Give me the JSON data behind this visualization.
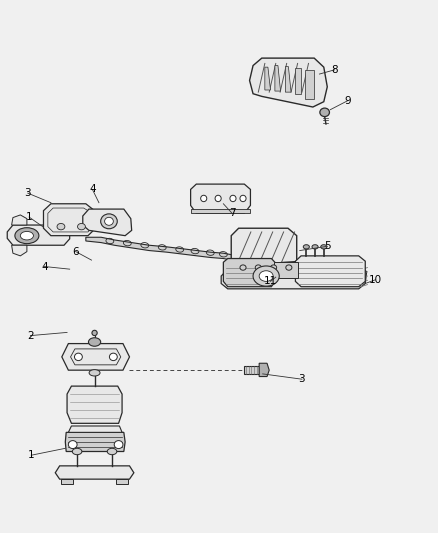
{
  "bg_color": "#f0f0f0",
  "fig_width": 4.38,
  "fig_height": 5.33,
  "dpi": 100,
  "line_color": "#2a2a2a",
  "fill_light": "#e8e8e8",
  "fill_mid": "#d0d0d0",
  "fill_dark": "#b0b0b0",
  "labels": {
    "1a": [
      0.07,
      0.585,
      0.13,
      0.565
    ],
    "1b": [
      0.09,
      0.138,
      0.155,
      0.155
    ],
    "2": [
      0.07,
      0.365,
      0.155,
      0.375
    ],
    "3a": [
      0.065,
      0.638,
      0.105,
      0.625
    ],
    "3b": [
      0.685,
      0.29,
      0.575,
      0.303
    ],
    "4a": [
      0.215,
      0.635,
      0.255,
      0.62
    ],
    "4b": [
      0.105,
      0.485,
      0.155,
      0.495
    ],
    "5": [
      0.745,
      0.53,
      0.68,
      0.53
    ],
    "6": [
      0.195,
      0.52,
      0.22,
      0.508
    ],
    "7": [
      0.53,
      0.598,
      0.545,
      0.583
    ],
    "8": [
      0.76,
      0.862,
      0.718,
      0.838
    ],
    "9": [
      0.79,
      0.808,
      0.77,
      0.798
    ],
    "10": [
      0.85,
      0.468,
      0.82,
      0.458
    ],
    "11": [
      0.62,
      0.468,
      0.648,
      0.468
    ]
  }
}
